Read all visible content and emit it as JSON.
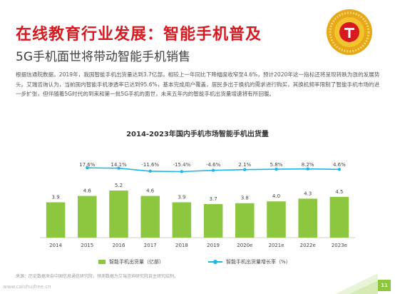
{
  "header": {
    "title": "在线教育行业发展：智能手机普及",
    "subtitle": "5G手机面世将带动智能手机销售"
  },
  "body_text": "根据信通院数据，2019年，我国智能手机出货量达到3.7亿部，相较上一年同比下降幅度收窄至4.6%，预计2020年这一指标还将呈现转跌为涨的发展势头。艾瑞咨询认为，当前国内智能手机渗透率已达到95.6%，基本完成用户覆盖，居民多出于换机的需求进行购买，其换机频率限制了智能手机市场的进一步扩张，但伴随着5G时代的到来和第一批5G手机的面世，未来五年内的智能手机出货量增速将有所回暖。",
  "source_note": "来源：历史数据来自中国信息通信研究院，预测数据为艾瑞咨询研究院自主研究绘制。",
  "watermark": "www.caishuifree.cn",
  "page_number": "11",
  "colors": {
    "title": "#d71920",
    "bar": "#8dc63f",
    "line": "#1fb6e8"
  },
  "chart_data": {
    "type": "bar",
    "title": "2014-2023年国内手机市场智能手机出货量",
    "categories": [
      "2014",
      "2015",
      "2016",
      "2017",
      "2018",
      "2019",
      "2020e",
      "2021e",
      "2022e",
      "2023e"
    ],
    "series": [
      {
        "name": "智能手机出货量（亿部）",
        "type": "bar",
        "values": [
          3.9,
          4.6,
          5.2,
          4.6,
          3.9,
          3.7,
          3.8,
          4.0,
          4.3,
          4.5
        ],
        "labels": [
          "3.9",
          "4.6",
          "5.2",
          "4.6",
          "3.9",
          "3.7",
          "3.8",
          "4.0",
          "4.3",
          "4.5"
        ]
      },
      {
        "name": "智能手机出货量增长率（%）",
        "type": "line",
        "values": [
          null,
          17.6,
          14.1,
          -11.6,
          -15.4,
          -4.6,
          2.1,
          5.8,
          8.2,
          4.6
        ],
        "labels": [
          "",
          "17.6%",
          "14.1%",
          "-11.6%",
          "-15.4%",
          "-4.6%",
          "2.1%",
          "5.8%",
          "8.2%",
          "4.6%"
        ]
      }
    ],
    "legend": "bottom",
    "grid": false
  }
}
